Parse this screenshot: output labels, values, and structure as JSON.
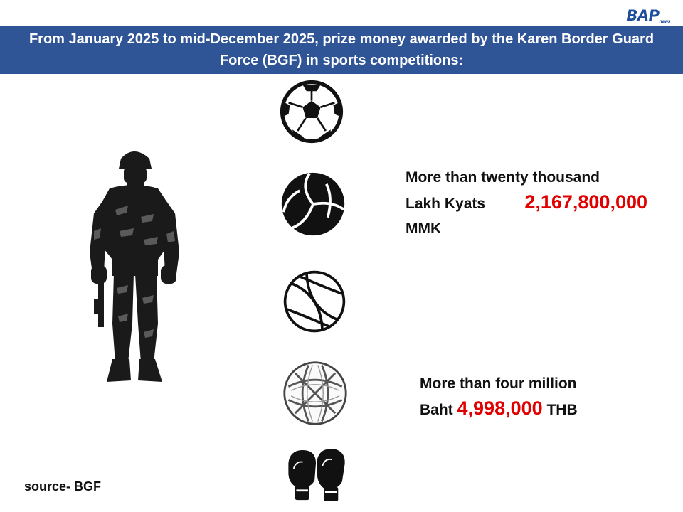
{
  "brand": {
    "logo_text": "BAP",
    "logo_small": "news"
  },
  "header": {
    "title": "From January 2025 to mid-December 2025, prize money awarded by the Karen Border Guard Force (BGF) in sports competitions:",
    "color": "#2f5597"
  },
  "icons": [
    "soldier-icon",
    "soccer-ball-icon",
    "volleyball-icon",
    "basketball-icon",
    "chinlone-ball-icon",
    "boxing-gloves-icon"
  ],
  "prizes": {
    "mmk": {
      "line1": "More than twenty thousand",
      "line2_prefix": "Lakh Kyats",
      "amount": "2,167,800,000",
      "currency": "MMK"
    },
    "thb": {
      "line1": "More than four million",
      "prefix": "Baht",
      "amount": "4,998,000",
      "currency": "THB"
    }
  },
  "accent_color": "#e00000",
  "source": "source- BGF"
}
